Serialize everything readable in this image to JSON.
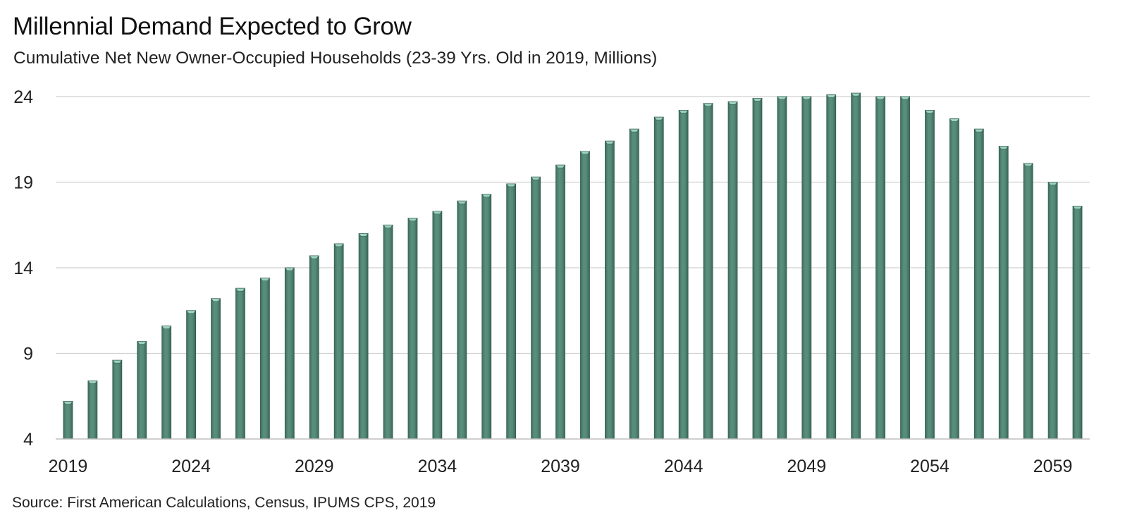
{
  "title": "Millennial Demand Expected to Grow",
  "subtitle": "Cumulative Net New Owner-Occupied Households (23-39 Yrs. Old in 2019, Millions)",
  "source": "Source: First American Calculations, Census, IPUMS CPS, 2019",
  "colors": {
    "bar": "#4f8271",
    "bar_top": "#9fd2bd",
    "grid": "#d0d0d0",
    "axis": "#bfbfbf"
  },
  "chart_data": {
    "type": "bar",
    "title": "Millennial Demand Expected to Grow",
    "subtitle": "Cumulative Net New Owner-Occupied Households (23-39 Yrs. Old in 2019, Millions)",
    "xlabel": "",
    "ylabel": "",
    "ylim": [
      4,
      24
    ],
    "yticks": [
      4,
      9,
      14,
      19,
      24
    ],
    "grid": true,
    "legend": "none",
    "xtick_labels": [
      "2019",
      "2024",
      "2029",
      "2034",
      "2039",
      "2044",
      "2049",
      "2054",
      "2059"
    ],
    "categories": [
      "2019",
      "2020",
      "2021",
      "2022",
      "2023",
      "2024",
      "2025",
      "2026",
      "2027",
      "2028",
      "2029",
      "2030",
      "2031",
      "2032",
      "2033",
      "2034",
      "2035",
      "2036",
      "2037",
      "2038",
      "2039",
      "2040",
      "2041",
      "2042",
      "2043",
      "2044",
      "2045",
      "2046",
      "2047",
      "2048",
      "2049",
      "2050",
      "2051",
      "2052",
      "2053",
      "2054",
      "2055",
      "2056",
      "2057",
      "2058",
      "2059",
      "2060"
    ],
    "values": [
      6.2,
      7.4,
      8.6,
      9.7,
      10.6,
      11.5,
      12.2,
      12.8,
      13.4,
      14.0,
      14.7,
      15.4,
      16.0,
      16.5,
      16.9,
      17.3,
      17.9,
      18.3,
      18.9,
      19.3,
      20.0,
      20.8,
      21.4,
      22.1,
      22.8,
      23.2,
      23.6,
      23.7,
      23.9,
      24.0,
      24.0,
      24.1,
      24.2,
      24.0,
      24.0,
      23.2,
      22.7,
      22.1,
      21.1,
      20.1,
      19.0,
      17.6
    ]
  }
}
